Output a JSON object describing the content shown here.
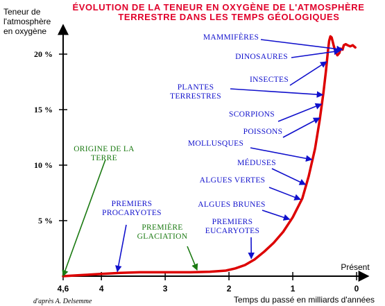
{
  "chart_data": {
    "type": "line",
    "title": [
      "ÉVOLUTION DE LA TENEUR EN OXYGÈNE DE L'ATMOSPHÈRE",
      "TERRESTRE DANS LES TEMPS GÉOLOGIQUES"
    ],
    "ylabel": [
      "Teneur de",
      "l'atmosphère",
      "en oxygène"
    ],
    "xlabel": "Temps du passé en milliards d'années",
    "x_end_label": "Présent",
    "credit": "d'après A. Delsemme",
    "x_direction": "reversed",
    "xlim": [
      4.6,
      0
    ],
    "ylim": [
      0,
      22
    ],
    "x_ticks": [
      {
        "value": 4.6,
        "label": "4,6"
      },
      {
        "value": 4,
        "label": "4"
      },
      {
        "value": 3,
        "label": "3"
      },
      {
        "value": 2,
        "label": "2"
      },
      {
        "value": 1,
        "label": "1"
      },
      {
        "value": 0,
        "label": "0"
      }
    ],
    "y_ticks": [
      {
        "value": 5,
        "label": "5 %"
      },
      {
        "value": 10,
        "label": "10 %"
      },
      {
        "value": 15,
        "label": "15 %"
      },
      {
        "value": 20,
        "label": "20 %"
      }
    ],
    "grid": false,
    "line_color": "#dd0000",
    "x": [
      4.6,
      4.3,
      4.0,
      3.7,
      3.4,
      3.0,
      2.6,
      2.3,
      2.05,
      1.9,
      1.75,
      1.6,
      1.45,
      1.3,
      1.15,
      1.0,
      0.85,
      0.75,
      0.65,
      0.58,
      0.52,
      0.48,
      0.45,
      0.43,
      0.41,
      0.39,
      0.36,
      0.33,
      0.3,
      0.27,
      0.25,
      0.22,
      0.2,
      0.17,
      0.14,
      0.1,
      0.06,
      0.02
    ],
    "y": [
      0,
      0.1,
      0.2,
      0.3,
      0.35,
      0.35,
      0.35,
      0.4,
      0.5,
      0.7,
      1.0,
      1.5,
      2.2,
      3.0,
      4.0,
      5.3,
      7.0,
      9.0,
      11.5,
      14.0,
      16.5,
      18.5,
      20.2,
      21.2,
      21.6,
      21.5,
      20.8,
      20.2,
      19.9,
      20.1,
      20.5,
      20.4,
      20.8,
      20.9,
      20.8,
      20.7,
      20.8,
      20.6
    ],
    "annotations": [
      {
        "lines": [
          "ORIGINE DE LA",
          "TERRE"
        ],
        "color": "green",
        "target_x": 4.6
      },
      {
        "lines": [
          "PREMIERS",
          "PROCARYOTES"
        ],
        "color": "blue",
        "target_x": 3.75
      },
      {
        "lines": [
          "PREMIÈRE",
          "GLACIATION"
        ],
        "color": "green",
        "target_x": 2.5
      },
      {
        "lines": [
          "PREMIERS",
          "EUCARYOTES"
        ],
        "color": "blue",
        "target_x": 1.65
      },
      {
        "lines": [
          "ALGUES BRUNES"
        ],
        "color": "blue",
        "target_x": 1.05
      },
      {
        "lines": [
          "ALGUES VERTES"
        ],
        "color": "blue",
        "target_x": 0.88
      },
      {
        "lines": [
          "MÉDUSES"
        ],
        "color": "blue",
        "target_x": 0.8
      },
      {
        "lines": [
          "MOLLUSQUES"
        ],
        "color": "blue",
        "target_x": 0.7
      },
      {
        "lines": [
          "POISSONS"
        ],
        "color": "blue",
        "target_x": 0.58
      },
      {
        "lines": [
          "SCORPIONS"
        ],
        "color": "blue",
        "target_x": 0.55
      },
      {
        "lines": [
          "PLANTES",
          "TERRESTRES"
        ],
        "color": "blue",
        "target_x": 0.53
      },
      {
        "lines": [
          "INSECTES"
        ],
        "color": "blue",
        "target_x": 0.47
      },
      {
        "lines": [
          "DINOSAURES"
        ],
        "color": "blue",
        "target_x": 0.26
      },
      {
        "lines": [
          "MAMMIFÈRES"
        ],
        "color": "blue",
        "target_x": 0.22
      }
    ]
  }
}
